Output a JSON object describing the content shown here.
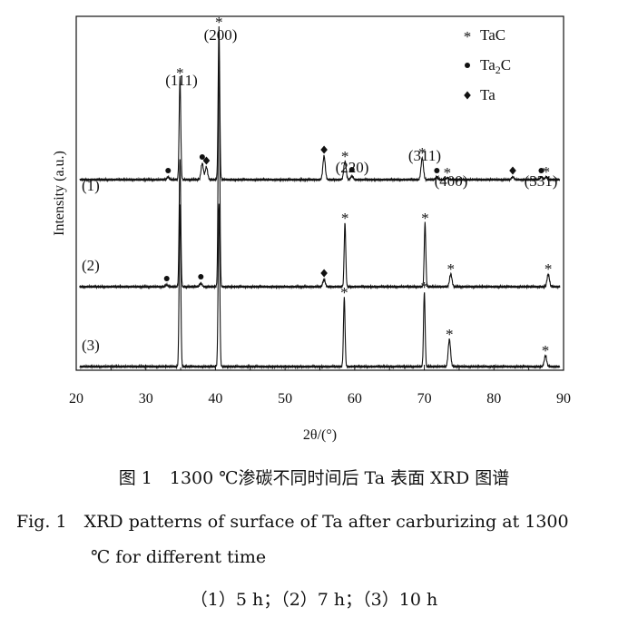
{
  "chart_data": {
    "type": "line",
    "xlabel": "2θ/(°)",
    "ylabel": "Intensity (a.u.)",
    "xlim": [
      20,
      90
    ],
    "xticks": [
      "20",
      "30",
      "40",
      "50",
      "60",
      "70",
      "80",
      "90"
    ],
    "legend": {
      "placement": "top-right",
      "entries": [
        {
          "symbol": "*",
          "label": "TaC",
          "marker": "star"
        },
        {
          "symbol": "●",
          "label": "Ta2C",
          "marker": "circle"
        },
        {
          "symbol": "◆",
          "label": "Ta",
          "marker": "diamond"
        }
      ]
    },
    "series": [
      {
        "name": "(1)",
        "peaks": [
          {
            "x": 33.2,
            "h": 3
          },
          {
            "x": 34.9,
            "h": 112
          },
          {
            "x": 38.1,
            "h": 18
          },
          {
            "x": 38.7,
            "h": 14
          },
          {
            "x": 40.5,
            "h": 168
          },
          {
            "x": 55.6,
            "h": 26
          },
          {
            "x": 58.6,
            "h": 20
          },
          {
            "x": 59.6,
            "h": 4
          },
          {
            "x": 69.7,
            "h": 24
          },
          {
            "x": 71.8,
            "h": 3
          },
          {
            "x": 73.3,
            "h": 2
          },
          {
            "x": 82.7,
            "h": 3
          },
          {
            "x": 86.8,
            "h": 3
          },
          {
            "x": 87.5,
            "h": 3
          }
        ]
      },
      {
        "name": "(2)",
        "peaks": [
          {
            "x": 33.0,
            "h": 2
          },
          {
            "x": 34.9,
            "h": 140
          },
          {
            "x": 37.9,
            "h": 4
          },
          {
            "x": 40.5,
            "h": 260
          },
          {
            "x": 55.6,
            "h": 8
          },
          {
            "x": 58.6,
            "h": 70
          },
          {
            "x": 70.1,
            "h": 70
          },
          {
            "x": 73.8,
            "h": 14
          },
          {
            "x": 87.8,
            "h": 14
          }
        ]
      },
      {
        "name": "(3)",
        "peaks": [
          {
            "x": 34.9,
            "h": 180
          },
          {
            "x": 40.5,
            "h": 180
          },
          {
            "x": 58.5,
            "h": 76
          },
          {
            "x": 70.0,
            "h": 82
          },
          {
            "x": 73.6,
            "h": 30
          },
          {
            "x": 87.4,
            "h": 12
          }
        ]
      }
    ],
    "markers": [
      {
        "type": "star",
        "series": 0,
        "x": 34.9
      },
      {
        "type": "star",
        "series": 0,
        "x": 40.5
      },
      {
        "type": "circle",
        "series": 0,
        "x": 33.2
      },
      {
        "type": "circle",
        "series": 0,
        "x": 38.1
      },
      {
        "type": "diamond",
        "series": 0,
        "x": 38.7
      },
      {
        "type": "diamond",
        "series": 0,
        "x": 55.6
      },
      {
        "type": "star",
        "series": 0,
        "x": 58.6
      },
      {
        "type": "circle",
        "series": 0,
        "x": 59.6
      },
      {
        "type": "star",
        "series": 0,
        "x": 69.7
      },
      {
        "type": "circle",
        "series": 0,
        "x": 71.8
      },
      {
        "type": "star",
        "series": 0,
        "x": 73.3
      },
      {
        "type": "diamond",
        "series": 0,
        "x": 82.7
      },
      {
        "type": "circle",
        "series": 0,
        "x": 86.8
      },
      {
        "type": "star",
        "series": 0,
        "x": 87.5
      },
      {
        "type": "circle",
        "series": 1,
        "x": 33.0
      },
      {
        "type": "circle",
        "series": 1,
        "x": 37.9
      },
      {
        "type": "diamond",
        "series": 1,
        "x": 55.6
      },
      {
        "type": "star",
        "series": 1,
        "x": 58.6
      },
      {
        "type": "star",
        "series": 1,
        "x": 70.1
      },
      {
        "type": "star",
        "series": 1,
        "x": 73.8
      },
      {
        "type": "star",
        "series": 1,
        "x": 87.8
      },
      {
        "type": "star",
        "series": 2,
        "x": 58.5
      },
      {
        "type": "star",
        "series": 2,
        "x": 70.0
      },
      {
        "type": "star",
        "series": 2,
        "x": 73.6
      },
      {
        "type": "star",
        "series": 2,
        "x": 87.4
      }
    ],
    "annotations": [
      {
        "text": "(111)",
        "x": 34.9
      },
      {
        "text": "(200)",
        "x": 40.5
      },
      {
        "text": "(220)",
        "x": 58.6
      },
      {
        "text": "(311)",
        "x": 69.7
      },
      {
        "text": "(400)",
        "x": 73.3
      },
      {
        "text": "(331)",
        "x": 87.5
      }
    ],
    "colors": {
      "line": "#111111",
      "background": "#ffffff"
    }
  },
  "caption": {
    "cn": "图 1　1300 ℃渗碳不同时间后 Ta 表面 XRD 图谱",
    "en_line1": "Fig. 1　XRD patterns of surface of Ta after carburizing at 1300",
    "en_line2": "℃ for different time",
    "sub": "（1）5 h；（2）7 h；（3）10 h"
  }
}
